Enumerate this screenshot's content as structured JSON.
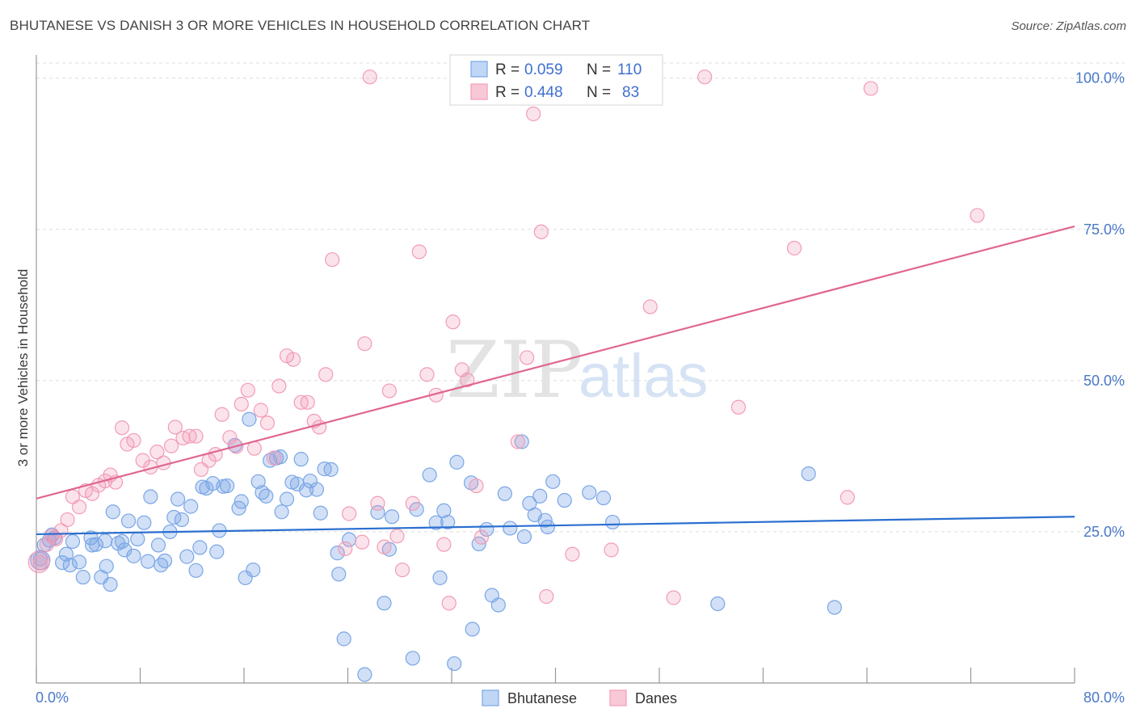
{
  "title": "BHUTANESE VS DANISH 3 OR MORE VEHICLES IN HOUSEHOLD CORRELATION CHART",
  "source": "Source: ZipAtlas.com",
  "watermark": {
    "zip": "ZIP",
    "atlas": "atlas"
  },
  "legend": {
    "rows": [
      {
        "r_label": "R =",
        "r_value": "0.059",
        "n_label": "N =",
        "n_value": "110"
      },
      {
        "r_label": "R =",
        "r_value": "0.448",
        "n_label": "N =",
        "n_value": "83"
      }
    ]
  },
  "bottom_legend": [
    "Bhutanese",
    "Danes"
  ],
  "chart_data": {
    "type": "scatter",
    "xlabel": "",
    "ylabel": "3 or more Vehicles in Household",
    "x_tick_labels": [
      "0.0%",
      "80.0%"
    ],
    "y_tick_labels": [
      "25.0%",
      "50.0%",
      "75.0%",
      "100.0%"
    ],
    "xlim": [
      0,
      80
    ],
    "ylim": [
      0,
      102.5
    ],
    "colors": {
      "bhutanese": "#7aa6e6",
      "danes": "#f29cb6",
      "bhutanese_line": "#2a6fcf",
      "danes_line": "#e0668f",
      "axis_text": "#4a78c8"
    },
    "series": [
      {
        "name": "Bhutanese",
        "trend": {
          "x": [
            0,
            80
          ],
          "y": [
            24.6,
            27.5
          ]
        },
        "points": [
          [
            0.3,
            20.5
          ],
          [
            0.6,
            22.8
          ],
          [
            1.0,
            23.6
          ],
          [
            1.4,
            24.0
          ],
          [
            2.0,
            19.9
          ],
          [
            2.3,
            21.3
          ],
          [
            2.8,
            23.4
          ],
          [
            3.3,
            20.0
          ],
          [
            3.6,
            17.5
          ],
          [
            4.2,
            24.0
          ],
          [
            4.3,
            22.8
          ],
          [
            4.6,
            22.9
          ],
          [
            5.0,
            17.5
          ],
          [
            5.4,
            19.3
          ],
          [
            5.7,
            16.3
          ],
          [
            5.9,
            28.3
          ],
          [
            6.3,
            23.1
          ],
          [
            6.6,
            23.4
          ],
          [
            6.8,
            22.0
          ],
          [
            7.1,
            26.8
          ],
          [
            7.5,
            21.0
          ],
          [
            7.8,
            23.8
          ],
          [
            8.3,
            26.5
          ],
          [
            8.6,
            20.1
          ],
          [
            8.8,
            30.8
          ],
          [
            9.4,
            22.8
          ],
          [
            9.6,
            19.5
          ],
          [
            9.9,
            20.2
          ],
          [
            10.3,
            25.0
          ],
          [
            10.6,
            27.4
          ],
          [
            10.9,
            30.4
          ],
          [
            11.2,
            27.0
          ],
          [
            11.6,
            20.9
          ],
          [
            11.9,
            29.2
          ],
          [
            12.3,
            18.6
          ],
          [
            12.6,
            22.4
          ],
          [
            12.8,
            32.4
          ],
          [
            13.1,
            32.2
          ],
          [
            13.6,
            33.0
          ],
          [
            13.9,
            21.7
          ],
          [
            14.1,
            25.2
          ],
          [
            14.4,
            32.5
          ],
          [
            14.7,
            32.6
          ],
          [
            15.3,
            39.3
          ],
          [
            15.6,
            28.9
          ],
          [
            15.8,
            30.0
          ],
          [
            16.1,
            17.4
          ],
          [
            16.4,
            43.6
          ],
          [
            16.7,
            18.7
          ],
          [
            17.1,
            33.3
          ],
          [
            17.4,
            31.5
          ],
          [
            17.7,
            30.9
          ],
          [
            18.0,
            36.8
          ],
          [
            18.5,
            37.2
          ],
          [
            18.8,
            37.4
          ],
          [
            18.9,
            28.3
          ],
          [
            19.3,
            30.4
          ],
          [
            19.7,
            33.2
          ],
          [
            20.1,
            32.9
          ],
          [
            20.4,
            37.0
          ],
          [
            20.8,
            31.9
          ],
          [
            21.1,
            33.4
          ],
          [
            21.6,
            32.0
          ],
          [
            21.9,
            28.1
          ],
          [
            22.2,
            35.4
          ],
          [
            22.7,
            35.3
          ],
          [
            23.2,
            21.5
          ],
          [
            23.3,
            18.0
          ],
          [
            23.7,
            7.3
          ],
          [
            24.1,
            23.7
          ],
          [
            25.3,
            1.4
          ],
          [
            26.3,
            28.2
          ],
          [
            26.8,
            13.2
          ],
          [
            27.2,
            22.1
          ],
          [
            27.4,
            27.5
          ],
          [
            29.0,
            4.1
          ],
          [
            29.3,
            28.7
          ],
          [
            30.3,
            34.4
          ],
          [
            30.8,
            26.5
          ],
          [
            31.1,
            17.4
          ],
          [
            31.4,
            28.5
          ],
          [
            31.7,
            26.6
          ],
          [
            32.2,
            3.2
          ],
          [
            32.4,
            36.5
          ],
          [
            33.5,
            33.1
          ],
          [
            33.6,
            8.9
          ],
          [
            34.1,
            23.0
          ],
          [
            34.7,
            25.4
          ],
          [
            35.1,
            14.5
          ],
          [
            35.6,
            12.9
          ],
          [
            36.1,
            31.3
          ],
          [
            36.5,
            25.6
          ],
          [
            37.4,
            39.9
          ],
          [
            37.6,
            24.2
          ],
          [
            38.0,
            29.7
          ],
          [
            38.4,
            27.8
          ],
          [
            38.8,
            30.9
          ],
          [
            39.2,
            26.9
          ],
          [
            39.4,
            25.8
          ],
          [
            39.8,
            33.3
          ],
          [
            40.7,
            30.2
          ],
          [
            42.6,
            31.5
          ],
          [
            43.7,
            30.6
          ],
          [
            44.4,
            26.6
          ],
          [
            52.5,
            13.1
          ],
          [
            59.5,
            34.6
          ],
          [
            61.5,
            12.5
          ],
          [
            1.2,
            24.5
          ],
          [
            2.6,
            19.5
          ],
          [
            5.3,
            23.5
          ]
        ]
      },
      {
        "name": "Danes",
        "trend": {
          "x": [
            0,
            80
          ],
          "y": [
            30.5,
            75.5
          ]
        },
        "points": [
          [
            0.3,
            19.9
          ],
          [
            0.8,
            22.9
          ],
          [
            1.2,
            24.3
          ],
          [
            1.5,
            23.8
          ],
          [
            1.9,
            25.2
          ],
          [
            2.4,
            27.0
          ],
          [
            2.8,
            30.8
          ],
          [
            3.3,
            29.1
          ],
          [
            3.8,
            31.8
          ],
          [
            4.3,
            31.3
          ],
          [
            4.8,
            32.7
          ],
          [
            5.3,
            33.4
          ],
          [
            5.7,
            34.4
          ],
          [
            6.1,
            33.2
          ],
          [
            6.6,
            42.2
          ],
          [
            7.0,
            39.5
          ],
          [
            7.5,
            40.1
          ],
          [
            8.2,
            36.8
          ],
          [
            8.8,
            35.7
          ],
          [
            9.3,
            38.2
          ],
          [
            9.8,
            36.4
          ],
          [
            10.4,
            39.2
          ],
          [
            10.7,
            42.3
          ],
          [
            11.3,
            40.5
          ],
          [
            11.8,
            40.8
          ],
          [
            12.3,
            40.8
          ],
          [
            12.7,
            35.3
          ],
          [
            13.3,
            36.8
          ],
          [
            13.8,
            37.8
          ],
          [
            14.3,
            44.4
          ],
          [
            14.9,
            40.6
          ],
          [
            15.4,
            39.1
          ],
          [
            15.8,
            46.1
          ],
          [
            16.3,
            48.4
          ],
          [
            16.8,
            38.8
          ],
          [
            17.3,
            45.1
          ],
          [
            17.8,
            43.0
          ],
          [
            18.3,
            37.2
          ],
          [
            18.7,
            49.1
          ],
          [
            19.3,
            54.1
          ],
          [
            19.8,
            53.5
          ],
          [
            20.4,
            46.4
          ],
          [
            20.9,
            46.4
          ],
          [
            21.4,
            43.3
          ],
          [
            21.8,
            42.3
          ],
          [
            22.3,
            51.0
          ],
          [
            22.8,
            70.0
          ],
          [
            23.8,
            22.2
          ],
          [
            24.1,
            28.0
          ],
          [
            25.1,
            23.3
          ],
          [
            25.3,
            56.1
          ],
          [
            25.7,
            100.2
          ],
          [
            26.3,
            29.7
          ],
          [
            26.8,
            22.5
          ],
          [
            27.2,
            48.3
          ],
          [
            27.8,
            24.3
          ],
          [
            28.2,
            18.7
          ],
          [
            29.0,
            29.7
          ],
          [
            29.5,
            71.3
          ],
          [
            30.1,
            51.0
          ],
          [
            30.8,
            47.6
          ],
          [
            31.4,
            22.9
          ],
          [
            31.8,
            13.2
          ],
          [
            32.1,
            59.7
          ],
          [
            32.8,
            51.8
          ],
          [
            33.2,
            50.1
          ],
          [
            33.9,
            32.6
          ],
          [
            34.3,
            24.1
          ],
          [
            37.1,
            39.9
          ],
          [
            37.8,
            53.8
          ],
          [
            38.3,
            94.1
          ],
          [
            38.9,
            74.6
          ],
          [
            39.3,
            14.3
          ],
          [
            41.3,
            21.3
          ],
          [
            44.3,
            22.0
          ],
          [
            47.3,
            62.2
          ],
          [
            49.1,
            14.1
          ],
          [
            51.5,
            100.2
          ],
          [
            54.1,
            45.6
          ],
          [
            58.4,
            71.9
          ],
          [
            62.5,
            30.7
          ],
          [
            64.3,
            98.3
          ],
          [
            72.5,
            77.3
          ]
        ]
      }
    ]
  }
}
